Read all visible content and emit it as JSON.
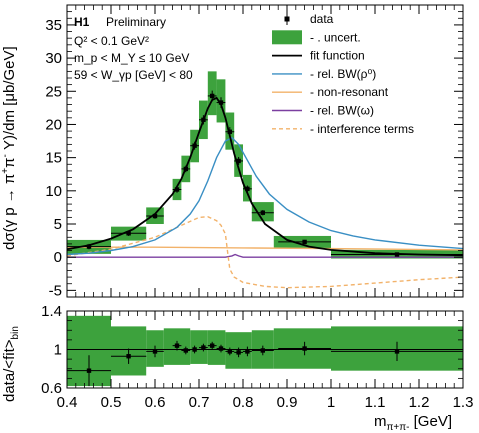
{
  "chart_data": [
    {
      "type": "line",
      "xlabel": "m_{π+π-} [GeV]",
      "ylabel": "dσ(γ p → π+π- Y)/dm [μb/GeV]",
      "xlim": [
        0.4,
        1.3
      ],
      "ylim": [
        -6,
        38
      ],
      "yticks": [
        -5,
        0,
        5,
        10,
        15,
        20,
        25,
        30,
        35
      ],
      "xticks": [
        0.4,
        0.5,
        0.6,
        0.7,
        0.8,
        0.9,
        1,
        1.1,
        1.2,
        1.3
      ],
      "annotations": {
        "logo": "H1",
        "status": "Preliminary",
        "cut1": "Q² < 0.1 GeV²",
        "cut2": "m_p < M_Y ≤ 10 GeV",
        "cut3": "59 < W_γp [GeV] < 80"
      },
      "legend": {
        "placement": "top-right",
        "entries": [
          {
            "label": "data",
            "kind": "marker",
            "color": "#000000"
          },
          {
            "label": "- . uncert.",
            "kind": "box",
            "color": "#3da23d"
          },
          {
            "label": "fit function",
            "kind": "line",
            "color": "#000000"
          },
          {
            "label": "- rel. BW(ρ⁰)",
            "kind": "line",
            "color": "#3a8fc4"
          },
          {
            "label": "- non-resonant",
            "kind": "line",
            "color": "#f2b26a"
          },
          {
            "label": "- rel. BW(ω)",
            "kind": "line",
            "color": "#7b3fa0"
          },
          {
            "label": "- interference terms",
            "kind": "dashed",
            "color": "#f2b26a"
          }
        ]
      },
      "data_points": [
        {
          "x": 0.45,
          "y": 1.6,
          "xerr": 0.05,
          "yerr": 0.4
        },
        {
          "x": 0.54,
          "y": 3.6,
          "xerr": 0.04,
          "yerr": 0.4
        },
        {
          "x": 0.6,
          "y": 6.2,
          "xerr": 0.02,
          "yerr": 0.4
        },
        {
          "x": 0.65,
          "y": 10.2,
          "xerr": 0.01,
          "yerr": 0.5
        },
        {
          "x": 0.67,
          "y": 13.3,
          "xerr": 0.01,
          "yerr": 0.5
        },
        {
          "x": 0.69,
          "y": 16.8,
          "xerr": 0.01,
          "yerr": 0.6
        },
        {
          "x": 0.71,
          "y": 20.7,
          "xerr": 0.01,
          "yerr": 0.7
        },
        {
          "x": 0.73,
          "y": 24.3,
          "xerr": 0.01,
          "yerr": 0.8
        },
        {
          "x": 0.75,
          "y": 23.3,
          "xerr": 0.01,
          "yerr": 0.8
        },
        {
          "x": 0.77,
          "y": 18.9,
          "xerr": 0.01,
          "yerr": 0.7
        },
        {
          "x": 0.79,
          "y": 14.5,
          "xerr": 0.01,
          "yerr": 0.6
        },
        {
          "x": 0.81,
          "y": 10.3,
          "xerr": 0.01,
          "yerr": 0.5
        },
        {
          "x": 0.845,
          "y": 6.7,
          "xerr": 0.025,
          "yerr": 0.4
        },
        {
          "x": 0.94,
          "y": 2.3,
          "xerr": 0.06,
          "yerr": 0.3
        },
        {
          "x": 1.15,
          "y": 0.4,
          "xerr": 0.15,
          "yerr": 0.2
        }
      ],
      "uncert_bands": [
        {
          "x0": 0.4,
          "x1": 0.5,
          "y0": 0.5,
          "y1": 2.6
        },
        {
          "x0": 0.5,
          "x1": 0.58,
          "y0": 2.5,
          "y1": 4.6
        },
        {
          "x0": 0.58,
          "x1": 0.62,
          "y0": 5.0,
          "y1": 7.5
        },
        {
          "x0": 0.64,
          "x1": 0.66,
          "y0": 8.6,
          "y1": 11.8
        },
        {
          "x0": 0.66,
          "x1": 0.68,
          "y0": 11.3,
          "y1": 15.3
        },
        {
          "x0": 0.68,
          "x1": 0.7,
          "y0": 14.3,
          "y1": 19.2
        },
        {
          "x0": 0.7,
          "x1": 0.72,
          "y0": 17.8,
          "y1": 23.6
        },
        {
          "x0": 0.72,
          "x1": 0.74,
          "y0": 21.4,
          "y1": 28.0
        },
        {
          "x0": 0.74,
          "x1": 0.76,
          "y0": 20.3,
          "y1": 26.8
        },
        {
          "x0": 0.76,
          "x1": 0.78,
          "y0": 16.2,
          "y1": 21.8
        },
        {
          "x0": 0.78,
          "x1": 0.8,
          "y0": 12.1,
          "y1": 17.0
        },
        {
          "x0": 0.8,
          "x1": 0.82,
          "y0": 8.4,
          "y1": 12.4
        },
        {
          "x0": 0.82,
          "x1": 0.87,
          "y0": 5.4,
          "y1": 8.3
        },
        {
          "x0": 0.87,
          "x1": 1.0,
          "y0": 1.3,
          "y1": 3.2
        },
        {
          "x0": 1.0,
          "x1": 1.3,
          "y0": -0.2,
          "y1": 1.1
        }
      ],
      "curves": {
        "fit_function": {
          "color": "#000000",
          "x": [
            0.4,
            0.45,
            0.5,
            0.55,
            0.6,
            0.64,
            0.66,
            0.68,
            0.7,
            0.72,
            0.73,
            0.74,
            0.75,
            0.76,
            0.77,
            0.78,
            0.8,
            0.82,
            0.85,
            0.9,
            0.95,
            1.0,
            1.1,
            1.2,
            1.3
          ],
          "y": [
            1.2,
            1.8,
            2.8,
            4.2,
            6.5,
            9.5,
            11.8,
            15.0,
            18.8,
            22.4,
            23.7,
            24.0,
            23.0,
            21.0,
            18.3,
            15.6,
            11.2,
            8.1,
            5.0,
            2.6,
            1.6,
            1.1,
            0.6,
            0.4,
            0.3
          ]
        },
        "rel_bw_rho": {
          "color": "#3a8fc4",
          "x": [
            0.4,
            0.45,
            0.5,
            0.55,
            0.6,
            0.65,
            0.68,
            0.7,
            0.72,
            0.74,
            0.76,
            0.775,
            0.79,
            0.81,
            0.83,
            0.86,
            0.9,
            0.95,
            1.0,
            1.05,
            1.1,
            1.2,
            1.3
          ],
          "y": [
            0.4,
            0.6,
            1.0,
            1.6,
            2.6,
            4.5,
            6.5,
            8.5,
            11.5,
            15.0,
            17.5,
            18.0,
            17.0,
            14.6,
            12.2,
            9.5,
            7.2,
            5.3,
            4.0,
            3.2,
            2.6,
            1.8,
            1.3
          ]
        },
        "non_resonant": {
          "color": "#f2b26a",
          "x": [
            0.4,
            0.6,
            0.8,
            1.0,
            1.3
          ],
          "y": [
            1.5,
            1.5,
            1.4,
            1.3,
            1.1
          ]
        },
        "rel_bw_omega": {
          "color": "#7b3fa0",
          "x": [
            0.4,
            0.76,
            0.775,
            0.782,
            0.79,
            0.8,
            1.3
          ],
          "y": [
            0.0,
            0.0,
            0.2,
            0.4,
            0.2,
            0.0,
            0.0
          ]
        },
        "interference_terms": {
          "color": "#f2b26a",
          "dashed": true,
          "x": [
            0.4,
            0.5,
            0.6,
            0.65,
            0.7,
            0.72,
            0.74,
            0.75,
            0.76,
            0.765,
            0.77,
            0.78,
            0.8,
            0.85,
            0.9,
            1.0,
            1.1,
            1.2,
            1.3
          ],
          "y": [
            0.2,
            1.2,
            3.0,
            4.5,
            6.0,
            6.1,
            5.5,
            4.8,
            3.5,
            0.8,
            -1.8,
            -3.0,
            -3.8,
            -4.4,
            -4.6,
            -4.4,
            -3.9,
            -3.4,
            -3.0
          ]
        }
      }
    },
    {
      "type": "scatter",
      "xlabel": "m_{π+π-} [GeV]",
      "ylabel": "data/<fit>_bin",
      "xlim": [
        0.4,
        1.3
      ],
      "ylim": [
        0.6,
        1.4
      ],
      "yticks": [
        0.6,
        1,
        1.4
      ],
      "xticks": [
        0.4,
        0.5,
        0.6,
        0.7,
        0.8,
        0.9,
        1,
        1.1,
        1.2,
        1.3
      ],
      "reference_line": 1,
      "ratio_points": [
        {
          "x": 0.45,
          "y": 0.78,
          "xerr": 0.05,
          "yerr": 0.16
        },
        {
          "x": 0.54,
          "y": 0.93,
          "xerr": 0.04,
          "yerr": 0.08
        },
        {
          "x": 0.6,
          "y": 0.98,
          "xerr": 0.02,
          "yerr": 0.06
        },
        {
          "x": 0.65,
          "y": 1.04,
          "xerr": 0.01,
          "yerr": 0.05
        },
        {
          "x": 0.67,
          "y": 0.99,
          "xerr": 0.01,
          "yerr": 0.04
        },
        {
          "x": 0.69,
          "y": 1.0,
          "xerr": 0.01,
          "yerr": 0.04
        },
        {
          "x": 0.71,
          "y": 1.02,
          "xerr": 0.01,
          "yerr": 0.04
        },
        {
          "x": 0.73,
          "y": 1.04,
          "xerr": 0.01,
          "yerr": 0.04
        },
        {
          "x": 0.75,
          "y": 1.01,
          "xerr": 0.01,
          "yerr": 0.04
        },
        {
          "x": 0.77,
          "y": 0.98,
          "xerr": 0.01,
          "yerr": 0.04
        },
        {
          "x": 0.79,
          "y": 0.97,
          "xerr": 0.01,
          "yerr": 0.05
        },
        {
          "x": 0.81,
          "y": 0.98,
          "xerr": 0.01,
          "yerr": 0.05
        },
        {
          "x": 0.845,
          "y": 0.99,
          "xerr": 0.025,
          "yerr": 0.05
        },
        {
          "x": 0.94,
          "y": 1.01,
          "xerr": 0.06,
          "yerr": 0.07
        },
        {
          "x": 1.15,
          "y": 0.98,
          "xerr": 0.15,
          "yerr": 0.1
        }
      ],
      "uncert_bands": [
        {
          "x0": 0.4,
          "x1": 0.5,
          "y0": 0.62,
          "y1": 1.35
        },
        {
          "x0": 0.5,
          "x1": 0.58,
          "y0": 0.73,
          "y1": 1.24
        },
        {
          "x0": 0.58,
          "x1": 0.62,
          "y0": 0.82,
          "y1": 1.2
        },
        {
          "x0": 0.62,
          "x1": 0.68,
          "y0": 0.84,
          "y1": 1.22
        },
        {
          "x0": 0.68,
          "x1": 0.72,
          "y0": 0.85,
          "y1": 1.2
        },
        {
          "x0": 0.72,
          "x1": 0.76,
          "y0": 0.84,
          "y1": 1.2
        },
        {
          "x0": 0.76,
          "x1": 0.82,
          "y0": 0.8,
          "y1": 1.18
        },
        {
          "x0": 0.82,
          "x1": 0.87,
          "y0": 0.8,
          "y1": 1.2
        },
        {
          "x0": 0.87,
          "x1": 1.0,
          "y0": 0.8,
          "y1": 1.22
        },
        {
          "x0": 1.0,
          "x1": 1.3,
          "y0": 0.78,
          "y1": 1.24
        }
      ]
    }
  ]
}
